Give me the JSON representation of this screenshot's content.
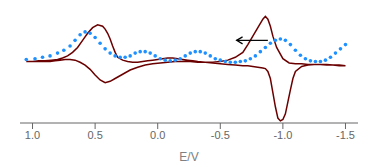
{
  "chart_data": {
    "type": "line",
    "xlabel": "E/V",
    "xlim": [
      1.1,
      -1.6
    ],
    "ylim": [
      -0.85,
      0.75
    ],
    "xticks": [
      {
        "value": 1.0,
        "label": "1.0"
      },
      0.5,
      {
        "value": 0.0,
        "label": "0.0"
      },
      -0.5,
      {
        "value": -1.0,
        "label": "-1.0"
      },
      -1.5
    ],
    "tick_labels": "x",
    "grid": false,
    "series": [
      {
        "type": "line",
        "color": "#6B0000",
        "x": [
          1.05,
          1.0,
          0.95,
          0.9,
          0.85,
          0.8,
          0.76,
          0.72,
          0.68,
          0.64,
          0.6,
          0.56,
          0.52,
          0.48,
          0.44,
          0.42,
          0.4,
          0.38,
          0.36,
          0.34,
          0.32,
          0.28,
          0.24,
          0.2,
          0.16,
          0.12,
          0.08,
          0.04,
          0.0,
          -0.04,
          -0.08,
          -0.12,
          -0.16,
          -0.2,
          -0.24,
          -0.28,
          -0.32,
          -0.38,
          -0.44,
          -0.5,
          -0.56,
          -0.62,
          -0.68,
          -0.72,
          -0.76,
          -0.8,
          -0.84,
          -0.86,
          -0.88,
          -0.9,
          -0.92,
          -0.94,
          -0.96,
          -0.98,
          -1.0,
          -1.02,
          -1.04,
          -1.06,
          -1.08,
          -1.1,
          -1.15,
          -1.2,
          -1.25,
          -1.3,
          -1.35,
          -1.4,
          -1.45,
          -1.5,
          -1.45,
          -1.4,
          -1.35,
          -1.3,
          -1.25,
          -1.2,
          -1.15,
          -1.1,
          -1.05,
          -1.0,
          -0.95,
          -0.92,
          -0.9,
          -0.88,
          -0.86,
          -0.84,
          -0.8,
          -0.76,
          -0.72,
          -0.68,
          -0.62,
          -0.56,
          -0.5,
          -0.44,
          -0.38,
          -0.32,
          -0.26,
          -0.2,
          -0.14,
          -0.08,
          -0.02,
          0.04,
          0.1,
          0.16,
          0.22,
          0.28,
          0.34,
          0.38,
          0.42,
          0.46,
          0.5,
          0.54,
          0.58,
          0.62,
          0.66,
          0.7,
          0.74,
          0.78,
          0.82,
          0.86,
          0.9,
          0.95,
          1.0,
          1.05
        ],
        "values": [
          0.02,
          0.02,
          0.03,
          0.03,
          0.04,
          0.05,
          0.07,
          0.1,
          0.15,
          0.22,
          0.32,
          0.42,
          0.5,
          0.54,
          0.52,
          0.48,
          0.42,
          0.34,
          0.24,
          0.15,
          0.08,
          0.04,
          0.02,
          0.01,
          0.01,
          0.02,
          0.03,
          0.04,
          0.05,
          0.06,
          0.07,
          0.07,
          0.06,
          0.05,
          0.04,
          0.03,
          0.02,
          0.01,
          0.0,
          -0.01,
          -0.02,
          -0.03,
          -0.04,
          -0.04,
          -0.05,
          -0.06,
          -0.07,
          -0.08,
          -0.12,
          -0.22,
          -0.42,
          -0.62,
          -0.78,
          -0.82,
          -0.8,
          -0.72,
          -0.55,
          -0.38,
          -0.22,
          -0.12,
          -0.05,
          -0.03,
          -0.02,
          -0.02,
          -0.02,
          -0.03,
          -0.03,
          -0.04,
          -0.04,
          -0.03,
          -0.03,
          -0.02,
          -0.02,
          -0.02,
          -0.01,
          -0.01,
          0.0,
          0.06,
          0.22,
          0.38,
          0.52,
          0.62,
          0.66,
          0.62,
          0.5,
          0.38,
          0.26,
          0.15,
          0.08,
          0.04,
          0.02,
          0.01,
          0.01,
          0.01,
          0.02,
          0.02,
          0.02,
          0.01,
          0.0,
          -0.01,
          -0.03,
          -0.06,
          -0.1,
          -0.16,
          -0.22,
          -0.26,
          -0.28,
          -0.24,
          -0.17,
          -0.09,
          -0.03,
          0.01,
          0.04,
          0.05,
          0.05,
          0.04,
          0.03,
          0.02,
          0.02,
          0.02,
          0.02,
          0.02
        ]
      },
      {
        "type": "scatter",
        "color": "#1E90FF",
        "marker": "dot",
        "x": [
          1.05,
          0.98,
          0.92,
          0.86,
          0.8,
          0.75,
          0.7,
          0.66,
          0.62,
          0.58,
          0.54,
          0.5,
          0.46,
          0.42,
          0.38,
          0.34,
          0.3,
          0.26,
          0.22,
          0.18,
          0.14,
          0.1,
          0.06,
          0.02,
          -0.02,
          -0.06,
          -0.1,
          -0.14,
          -0.18,
          -0.22,
          -0.26,
          -0.3,
          -0.34,
          -0.38,
          -0.42,
          -0.46,
          -0.5,
          -0.54,
          -0.58,
          -0.62,
          -0.66,
          -0.7,
          -0.74,
          -0.78,
          -0.82,
          -0.86,
          -0.9,
          -0.94,
          -0.98,
          -1.02,
          -1.06,
          -1.1,
          -1.14,
          -1.18,
          -1.22,
          -1.26,
          -1.3,
          -1.34,
          -1.38,
          -1.42,
          -1.46,
          -1.5
        ],
        "values": [
          0.05,
          0.06,
          0.08,
          0.1,
          0.14,
          0.18,
          0.24,
          0.32,
          0.4,
          0.44,
          0.42,
          0.36,
          0.28,
          0.2,
          0.14,
          0.1,
          0.08,
          0.08,
          0.1,
          0.14,
          0.16,
          0.16,
          0.14,
          0.1,
          0.06,
          0.04,
          0.03,
          0.04,
          0.06,
          0.1,
          0.14,
          0.16,
          0.16,
          0.14,
          0.1,
          0.06,
          0.04,
          0.02,
          0.01,
          0.01,
          0.02,
          0.03,
          0.06,
          0.1,
          0.16,
          0.22,
          0.28,
          0.32,
          0.34,
          0.32,
          0.26,
          0.18,
          0.11,
          0.06,
          0.03,
          0.02,
          0.02,
          0.04,
          0.08,
          0.14,
          0.2,
          0.26
        ]
      }
    ],
    "annotations": [
      {
        "type": "arrow",
        "x": -0.88,
        "y": 0.32,
        "x_end": -0.63,
        "y_end": 0.32
      }
    ]
  }
}
